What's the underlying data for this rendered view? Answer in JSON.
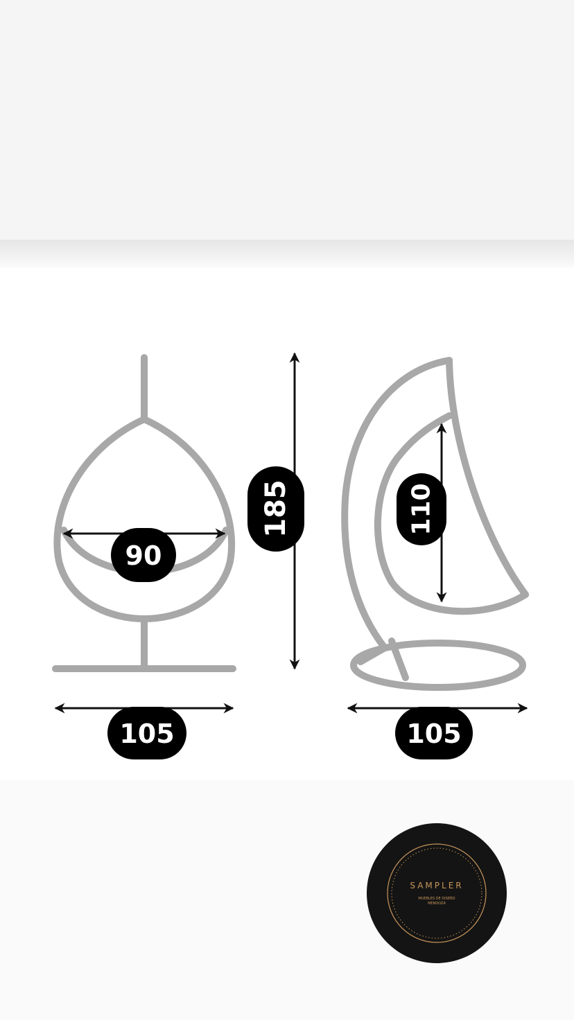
{
  "dimensions": {
    "egg_width": "90",
    "height": "185",
    "seat_height": "110",
    "front_base_width": "105",
    "side_base_width": "105"
  },
  "logo": {
    "name": "SAMPLER",
    "tagline_line1": "MUEBLES DE DISEÑO",
    "tagline_line2": "MENDOZA"
  },
  "colors": {
    "background": "#fafafa",
    "top_band": "#f5f5f5",
    "panel": "#ffffff",
    "chair_outline": "#a8a8a8",
    "dimension_badge": "#000000",
    "logo_disc": "#141414",
    "logo_gold": "#c8965a"
  }
}
